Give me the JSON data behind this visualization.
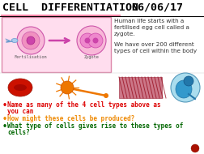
{
  "title_left": "CELL  DIFFERENTIATION",
  "title_right": "06/06/17",
  "bg_color": "#ffffff",
  "text_block1": "Human life starts with a\nfertilised egg cell called a\nzygote.",
  "text_block2": "We have over 200 different\ntypes of cell within the body",
  "text_fontsize": 5.2,
  "bullet1a": "Name as many of the 4 cell types above as",
  "bullet1b": "you can",
  "bullet2": "How might these cells be produced?",
  "bullet3a": "What type of cells gives rise to these types of",
  "bullet3b": "cells?",
  "bullet1_color": "#dd0000",
  "bullet2_color": "#ee8800",
  "bullet3_color": "#006600",
  "bullet_fontsize": 5.5,
  "pink_box_color": "#ffddee",
  "pink_box_border": "#dd88aa",
  "title_fontsize": 9.5,
  "title_underline_color": "#ff88aa"
}
